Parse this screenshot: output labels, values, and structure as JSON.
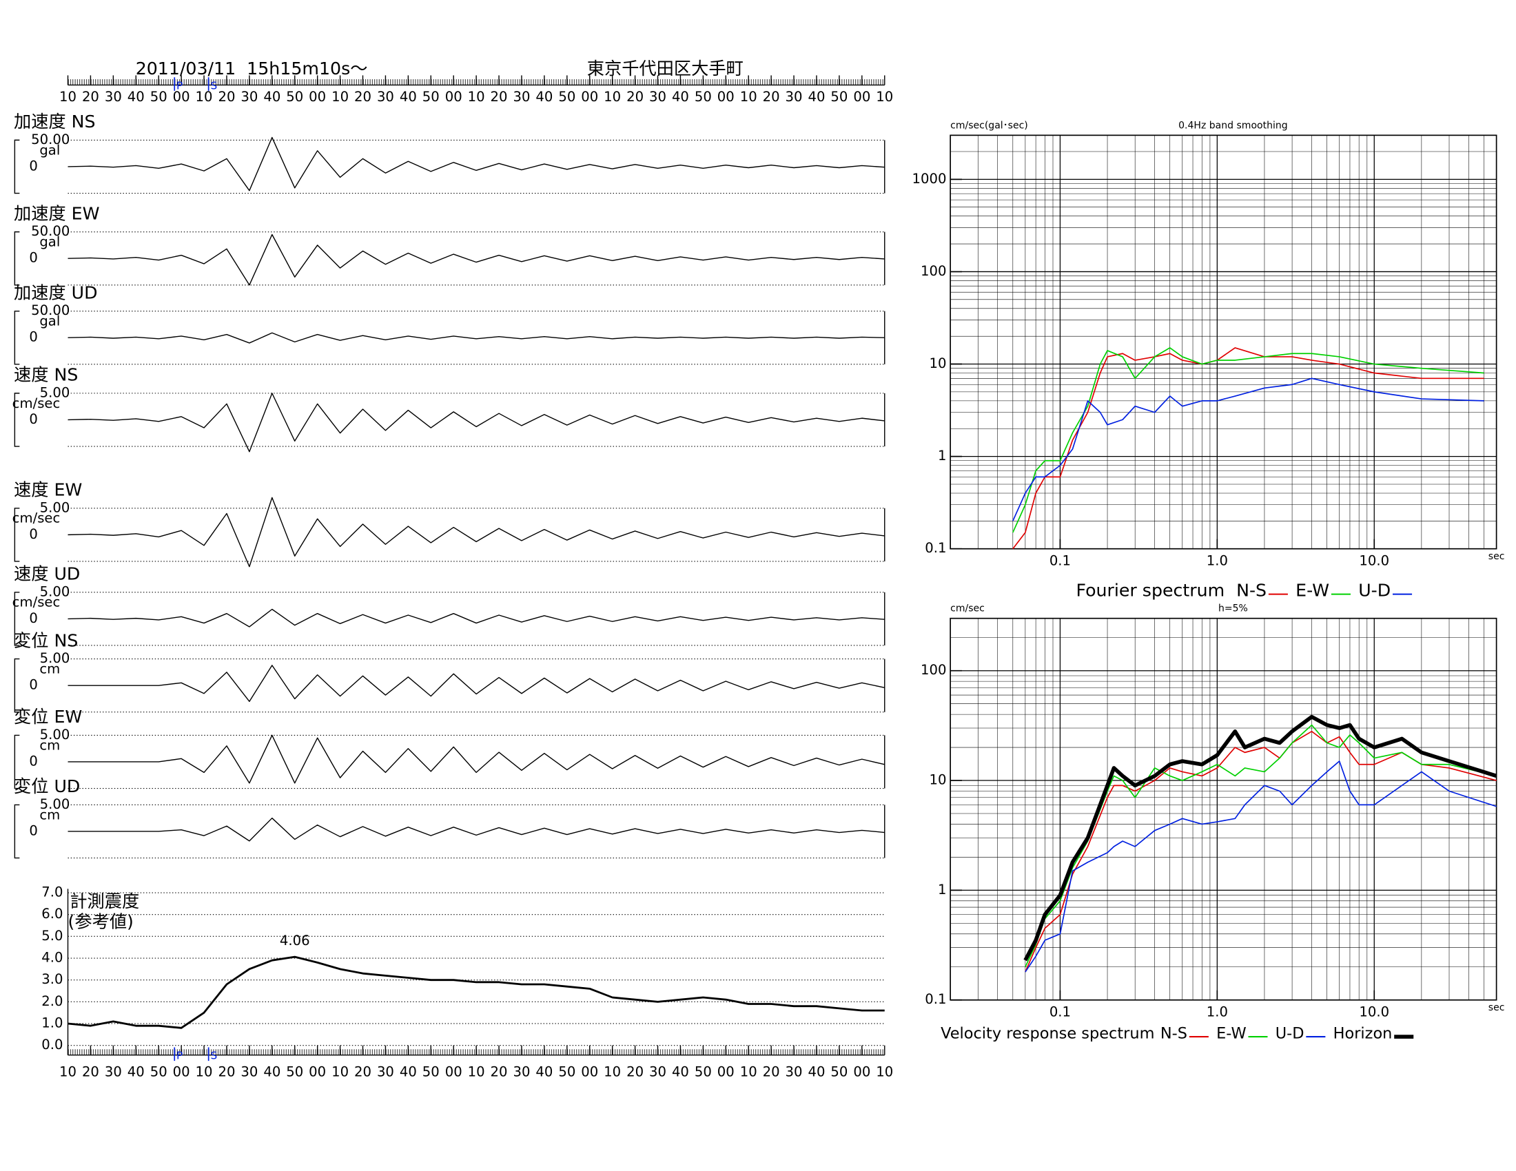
{
  "chart_data": [
    {
      "type": "waveform",
      "title": "2011/03/11  15h15m10s〜",
      "location": "東京千代田区大手町",
      "xlim": [
        0,
        360
      ],
      "xticks": [
        {
          "value": 0,
          "label": "10"
        },
        {
          "value": 10,
          "label": "20"
        },
        {
          "value": 20,
          "label": "30"
        },
        {
          "value": 30,
          "label": "40"
        },
        {
          "value": 40,
          "label": "50"
        },
        {
          "value": 50,
          "label": "00"
        },
        {
          "value": 60,
          "label": "10"
        },
        {
          "value": 70,
          "label": "20"
        },
        {
          "value": 80,
          "label": "30"
        },
        {
          "value": 90,
          "label": "40"
        },
        {
          "value": 100,
          "label": "50"
        },
        {
          "value": 110,
          "label": "00"
        },
        {
          "value": 120,
          "label": "10"
        },
        {
          "value": 130,
          "label": "20"
        },
        {
          "value": 140,
          "label": "30"
        },
        {
          "value": 150,
          "label": "40"
        },
        {
          "value": 160,
          "label": "50"
        },
        {
          "value": 170,
          "label": "00"
        },
        {
          "value": 180,
          "label": "10"
        },
        {
          "value": 190,
          "label": "20"
        },
        {
          "value": 200,
          "label": "30"
        },
        {
          "value": 210,
          "label": "40"
        },
        {
          "value": 220,
          "label": "50"
        },
        {
          "value": 230,
          "label": "00"
        },
        {
          "value": 240,
          "label": "10"
        },
        {
          "value": 250,
          "label": "20"
        },
        {
          "value": 260,
          "label": "30"
        },
        {
          "value": 270,
          "label": "40"
        },
        {
          "value": 280,
          "label": "50"
        },
        {
          "value": 290,
          "label": "00"
        },
        {
          "value": 300,
          "label": "10"
        },
        {
          "value": 310,
          "label": "20"
        },
        {
          "value": 320,
          "label": "30"
        },
        {
          "value": 330,
          "label": "40"
        },
        {
          "value": 340,
          "label": "50"
        },
        {
          "value": 350,
          "label": "00"
        },
        {
          "value": 360,
          "label": "10"
        }
      ],
      "markers": [
        {
          "label": "P",
          "value": 47
        },
        {
          "label": "S",
          "value": 62
        }
      ],
      "x": [
        0,
        10,
        20,
        30,
        40,
        50,
        60,
        70,
        80,
        90,
        100,
        110,
        120,
        130,
        140,
        150,
        160,
        170,
        180,
        190,
        200,
        210,
        220,
        230,
        240,
        250,
        260,
        270,
        280,
        290,
        300,
        310,
        320,
        330,
        340,
        350,
        360
      ],
      "series": [
        {
          "name": "加速度 NS",
          "unit": "gal",
          "ylim": [
            -50,
            50
          ],
          "yticks": [
            {
              "value": 50,
              "label": "50.00"
            },
            0
          ],
          "color": "#000",
          "values": [
            0,
            1,
            -1,
            2,
            -3,
            5,
            -8,
            15,
            -45,
            55,
            -40,
            30,
            -20,
            15,
            -12,
            10,
            -9,
            8,
            -7,
            6,
            -6,
            5,
            -5,
            4,
            -4,
            4,
            -3,
            3,
            -3,
            3,
            -2,
            3,
            -2,
            2,
            -2,
            2,
            -1
          ]
        },
        {
          "name": "加速度 EW",
          "unit": "gal",
          "ylim": [
            -50,
            50
          ],
          "yticks": [
            {
              "value": 50,
              "label": "50.00"
            },
            0
          ],
          "color": "#000",
          "values": [
            0,
            1,
            -1,
            2,
            -3,
            6,
            -10,
            18,
            -50,
            45,
            -35,
            25,
            -18,
            14,
            -11,
            10,
            -9,
            8,
            -7,
            6,
            -6,
            5,
            -5,
            5,
            -4,
            4,
            -4,
            3,
            -3,
            3,
            -3,
            2,
            -2,
            2,
            -2,
            2,
            -1
          ]
        },
        {
          "name": "加速度 UD",
          "unit": "gal",
          "ylim": [
            -50,
            50
          ],
          "yticks": [
            {
              "value": 50,
              "label": "50.00"
            },
            0
          ],
          "color": "#000",
          "values": [
            0,
            1,
            -1,
            1,
            -2,
            3,
            -4,
            6,
            -10,
            9,
            -8,
            6,
            -5,
            4,
            -4,
            3,
            -3,
            3,
            -2,
            2,
            -2,
            2,
            -2,
            2,
            -2,
            1,
            -1,
            1,
            -1,
            1,
            -1,
            1,
            -1,
            1,
            -1,
            1,
            0
          ]
        },
        {
          "name": "速度 NS",
          "unit": "cm/sec",
          "ylim": [
            -5,
            5
          ],
          "yticks": [
            {
              "value": 5,
              "label": "5.00"
            },
            0
          ],
          "color": "#000",
          "values": [
            0,
            0.1,
            -0.1,
            0.2,
            -0.3,
            0.6,
            -1.5,
            3,
            -6,
            5,
            -4,
            3,
            -2.5,
            2,
            -2,
            1.8,
            -1.5,
            1.5,
            -1.3,
            1.2,
            -1.1,
            1,
            -1,
            0.9,
            -0.8,
            0.8,
            -0.7,
            0.6,
            -0.6,
            0.5,
            -0.5,
            0.4,
            -0.4,
            0.3,
            -0.3,
            0.3,
            -0.2
          ]
        },
        {
          "name": "速度 EW",
          "unit": "cm/sec",
          "ylim": [
            -5,
            5
          ],
          "yticks": [
            {
              "value": 5,
              "label": "5.00"
            },
            0
          ],
          "color": "#000",
          "values": [
            0,
            0.1,
            -0.1,
            0.2,
            -0.4,
            0.8,
            -2,
            4,
            -6,
            7,
            -4,
            3,
            -2.2,
            2,
            -1.8,
            1.6,
            -1.5,
            1.4,
            -1.3,
            1.2,
            -1.1,
            1,
            -1,
            0.9,
            -0.8,
            0.7,
            -0.7,
            0.6,
            -0.6,
            0.5,
            -0.5,
            0.5,
            -0.4,
            0.4,
            -0.3,
            0.3,
            -0.2
          ]
        },
        {
          "name": "速度 UD",
          "unit": "cm/sec",
          "ylim": [
            -5,
            5
          ],
          "yticks": [
            {
              "value": 5,
              "label": "5.00"
            },
            0
          ],
          "color": "#000",
          "values": [
            0,
            0.1,
            -0.1,
            0.1,
            -0.2,
            0.4,
            -0.8,
            1,
            -1.5,
            1.8,
            -1.2,
            1,
            -0.9,
            0.8,
            -0.8,
            0.7,
            -0.7,
            1,
            -0.8,
            0.7,
            -0.6,
            0.6,
            -0.5,
            0.5,
            -0.5,
            0.4,
            -0.4,
            0.4,
            -0.3,
            0.3,
            -0.3,
            0.3,
            -0.2,
            0.2,
            -0.2,
            0.2,
            -0.1
          ]
        },
        {
          "name": "変位 NS",
          "unit": "cm",
          "ylim": [
            -5,
            5
          ],
          "yticks": [
            {
              "value": 5,
              "label": "5.00"
            },
            0
          ],
          "color": "#000",
          "values": [
            0,
            0,
            0,
            0,
            0,
            0.5,
            -1.5,
            2.5,
            -3,
            3.8,
            -2.5,
            2,
            -2,
            1.8,
            -1.8,
            1.6,
            -2,
            2.2,
            -1.6,
            1.5,
            -1.5,
            1.4,
            -1.4,
            1.3,
            -1.2,
            1.2,
            -1,
            1,
            -1,
            0.8,
            -0.8,
            0.7,
            -0.6,
            0.6,
            -0.5,
            0.5,
            -0.4
          ]
        },
        {
          "name": "変位 EW",
          "unit": "cm",
          "ylim": [
            -5,
            5
          ],
          "yticks": [
            {
              "value": 5,
              "label": "5.00"
            },
            0
          ],
          "color": "#000",
          "values": [
            0,
            0,
            0,
            0,
            0,
            0.6,
            -2,
            3,
            -4,
            5,
            -4,
            4.5,
            -3,
            2,
            -2,
            2.5,
            -1.8,
            2.8,
            -2,
            1.8,
            -1.6,
            1.6,
            -1.5,
            1.4,
            -1.3,
            1.2,
            -1.2,
            1.1,
            -1,
            1,
            -0.9,
            0.8,
            -0.7,
            0.7,
            -0.6,
            0.5,
            -0.5
          ]
        },
        {
          "name": "変位 UD",
          "unit": "cm",
          "ylim": [
            -5,
            5
          ],
          "yticks": [
            {
              "value": 5,
              "label": "5.00"
            },
            0
          ],
          "color": "#000",
          "values": [
            0,
            0,
            0,
            0,
            0,
            0.3,
            -0.8,
            1,
            -1.8,
            2.5,
            -1.5,
            1.2,
            -1,
            0.9,
            -0.9,
            0.8,
            -0.8,
            0.8,
            -0.7,
            0.7,
            -0.6,
            0.6,
            -0.6,
            0.5,
            -0.5,
            0.5,
            -0.4,
            0.4,
            -0.4,
            0.4,
            -0.3,
            0.3,
            -0.3,
            0.3,
            -0.2,
            0.2,
            -0.2
          ]
        }
      ]
    },
    {
      "type": "line",
      "title": "計測震度",
      "subtitle": "(参考値)",
      "color": "#000",
      "xlim": [
        0,
        360
      ],
      "ylim": [
        0,
        7
      ],
      "yticks": [
        {
          "value": 0,
          "label": "0.0"
        },
        {
          "value": 1,
          "label": "1.0"
        },
        {
          "value": 2,
          "label": "2.0"
        },
        {
          "value": 3,
          "label": "3.0"
        },
        {
          "value": 4,
          "label": "4.0"
        },
        {
          "value": 5,
          "label": "5.0"
        },
        {
          "value": 6,
          "label": "6.0"
        },
        {
          "value": 7,
          "label": "7.0"
        }
      ],
      "x": [
        0,
        10,
        20,
        30,
        40,
        50,
        60,
        70,
        80,
        90,
        100,
        110,
        120,
        130,
        140,
        150,
        160,
        170,
        180,
        190,
        200,
        210,
        220,
        230,
        240,
        250,
        260,
        270,
        280,
        290,
        300,
        310,
        320,
        330,
        340,
        350,
        360
      ],
      "values": [
        1.0,
        0.9,
        1.1,
        0.9,
        0.9,
        0.8,
        1.5,
        2.8,
        3.5,
        3.9,
        4.06,
        3.8,
        3.5,
        3.3,
        3.2,
        3.1,
        3.0,
        3.0,
        2.9,
        2.9,
        2.8,
        2.8,
        2.7,
        2.6,
        2.2,
        2.1,
        2.0,
        2.1,
        2.2,
        2.1,
        1.9,
        1.9,
        1.8,
        1.8,
        1.7,
        1.6,
        1.6
      ],
      "annotations": [
        {
          "text": "4.06",
          "x": 100,
          "y": 4.06
        }
      ]
    },
    {
      "type": "loglog",
      "title": "0.4Hz band smoothing",
      "ylabel": "cm/sec(gal･sec)",
      "xlabel": "sec",
      "legend_title": "Fourier spectrum",
      "grid": true,
      "xlim": [
        0.02,
        60
      ],
      "ylim": [
        0.1,
        3000
      ],
      "xticks": [
        {
          "value": 0.1,
          "label": "0.1"
        },
        {
          "value": 1,
          "label": "1.0"
        },
        {
          "value": 10,
          "label": "10.0"
        }
      ],
      "yticks": [
        0.1,
        1,
        10,
        100,
        1000
      ],
      "x": [
        0.05,
        0.06,
        0.07,
        0.08,
        0.1,
        0.12,
        0.15,
        0.18,
        0.2,
        0.25,
        0.3,
        0.4,
        0.5,
        0.6,
        0.8,
        1,
        1.3,
        2,
        3,
        4,
        6,
        10,
        20,
        50
      ],
      "series": [
        {
          "name": "N-S",
          "color": "#e00000",
          "values": [
            0.1,
            0.15,
            0.4,
            0.6,
            0.6,
            1.5,
            3,
            8,
            12,
            13,
            11,
            12,
            13,
            11,
            10,
            11,
            15,
            12,
            12,
            11,
            10,
            8,
            7,
            7
          ]
        },
        {
          "name": "E-W",
          "color": "#00d000",
          "values": [
            0.15,
            0.3,
            0.7,
            0.9,
            0.9,
            1.8,
            3.5,
            10,
            14,
            12,
            7,
            12,
            15,
            12,
            10,
            11,
            11,
            12,
            13,
            13,
            12,
            10,
            9,
            8
          ]
        },
        {
          "name": "U-D",
          "color": "#0020e0",
          "values": [
            0.2,
            0.4,
            0.6,
            0.6,
            0.8,
            1.2,
            4,
            3,
            2.2,
            2.5,
            3.5,
            3,
            4.5,
            3.5,
            4,
            4,
            4.5,
            5.5,
            6,
            7,
            6,
            5,
            4.2,
            4
          ]
        }
      ]
    },
    {
      "type": "loglog",
      "title": "h=5%",
      "ylabel": "cm/sec",
      "xlabel": "sec",
      "legend_title": "Velocity response spectrum",
      "grid": true,
      "xlim": [
        0.02,
        60
      ],
      "ylim": [
        0.1,
        300
      ],
      "xticks": [
        {
          "value": 0.1,
          "label": "0.1"
        },
        {
          "value": 1,
          "label": "1.0"
        },
        {
          "value": 10,
          "label": "10.0"
        }
      ],
      "yticks": [
        0.1,
        1,
        10,
        100
      ],
      "x": [
        0.06,
        0.07,
        0.08,
        0.1,
        0.12,
        0.15,
        0.2,
        0.22,
        0.25,
        0.3,
        0.4,
        0.5,
        0.6,
        0.8,
        1,
        1.3,
        1.5,
        2,
        2.5,
        3,
        4,
        5,
        6,
        7,
        8,
        10,
        15,
        20,
        30,
        60
      ],
      "series": [
        {
          "name": "N-S",
          "color": "#e00000",
          "values": [
            0.18,
            0.3,
            0.45,
            0.6,
            1.4,
            2.5,
            7,
            9,
            9,
            8,
            10,
            13,
            12,
            11,
            13,
            20,
            18,
            20,
            16,
            22,
            28,
            22,
            25,
            18,
            14,
            14,
            18,
            14,
            13,
            10
          ]
        },
        {
          "name": "E-W",
          "color": "#00d000",
          "values": [
            0.2,
            0.32,
            0.55,
            0.8,
            1.6,
            2.8,
            8,
            11,
            10,
            7,
            13,
            11,
            10,
            12,
            14,
            11,
            13,
            12,
            16,
            22,
            32,
            22,
            20,
            26,
            22,
            16,
            18,
            14,
            14,
            11
          ]
        },
        {
          "name": "U-D",
          "color": "#0020e0",
          "values": [
            0.18,
            0.25,
            0.35,
            0.4,
            1.5,
            1.8,
            2.2,
            2.5,
            2.8,
            2.5,
            3.5,
            4,
            4.5,
            4,
            4.2,
            4.5,
            6,
            9,
            8,
            6,
            9,
            12,
            15,
            8,
            6,
            6,
            9,
            12,
            8,
            5.8
          ]
        },
        {
          "name": "Horizon",
          "color": "#000000",
          "width": 4,
          "values": [
            0.23,
            0.35,
            0.6,
            0.9,
            1.8,
            3,
            9,
            13,
            11,
            9,
            11,
            14,
            15,
            14,
            17,
            28,
            20,
            24,
            22,
            28,
            38,
            32,
            30,
            32,
            24,
            20,
            24,
            18,
            15,
            11
          ]
        }
      ]
    }
  ]
}
